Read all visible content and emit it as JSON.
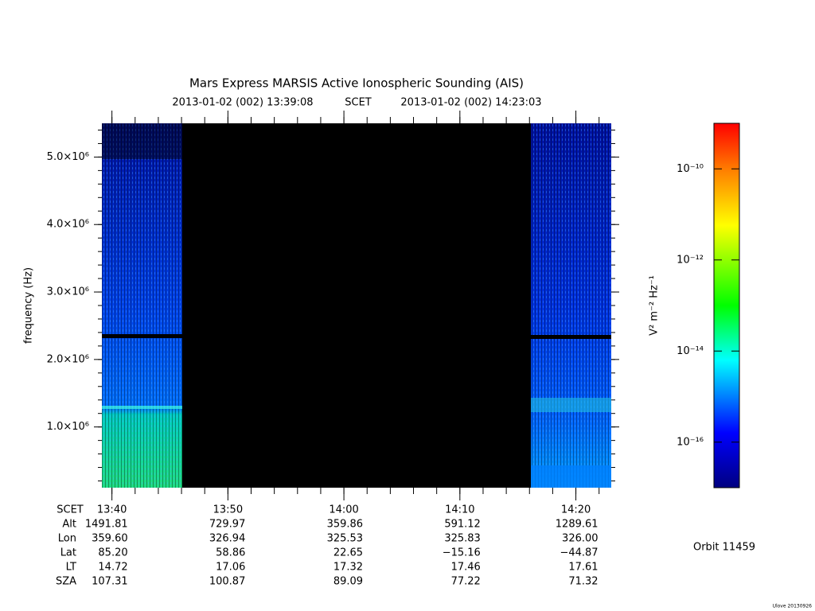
{
  "chart_data": {
    "type": "spectrogram",
    "title": "Mars Express MARSIS Active Ionospheric Sounding (AIS)",
    "start": "2013-01-02 (002) 13:39:08",
    "time_system": "SCET",
    "end": "2013-01-02 (002) 14:23:03",
    "y_label": "frequency (Hz)",
    "ylim": [
      100000,
      5500000
    ],
    "yticks": [
      {
        "value": 1000000,
        "label": "1.0×10⁶"
      },
      {
        "value": 2000000,
        "label": "2.0×10⁶"
      },
      {
        "value": 3000000,
        "label": "3.0×10⁶"
      },
      {
        "value": 4000000,
        "label": "4.0×10⁶"
      },
      {
        "value": 5000000,
        "label": "5.0×10⁶"
      }
    ],
    "xticks": [
      "13:40",
      "13:50",
      "14:00",
      "14:10",
      "14:20"
    ],
    "colorbar_label": "V² m⁻² Hz⁻¹",
    "zlim": [
      1e-17,
      1e-09
    ],
    "zlog": true,
    "zticks": [
      {
        "value": 1e-16,
        "label": "10⁻¹⁶"
      },
      {
        "value": 1e-14,
        "label": "10⁻¹⁴"
      },
      {
        "value": 1e-12,
        "label": "10⁻¹²"
      },
      {
        "value": 1e-10,
        "label": "10⁻¹⁰"
      }
    ],
    "ephemeris": {
      "scet_label": "SCET",
      "labels": [
        "Alt",
        "Lon",
        "Lat",
        "LT",
        "SZA"
      ],
      "rows": [
        [
          "1491.81",
          "729.97",
          "359.86",
          "591.12",
          "1289.61"
        ],
        [
          "359.60",
          "326.94",
          "325.53",
          "325.83",
          "326.00"
        ],
        [
          "85.20",
          "58.86",
          "22.65",
          "−15.16",
          "−44.87"
        ],
        [
          "14.72",
          "17.06",
          "17.32",
          "17.46",
          "17.61"
        ],
        [
          "107.31",
          "100.87",
          "89.09",
          "77.22",
          "71.32"
        ]
      ]
    },
    "orbit": "Orbit 11459",
    "version": "Ulove 20130926"
  }
}
